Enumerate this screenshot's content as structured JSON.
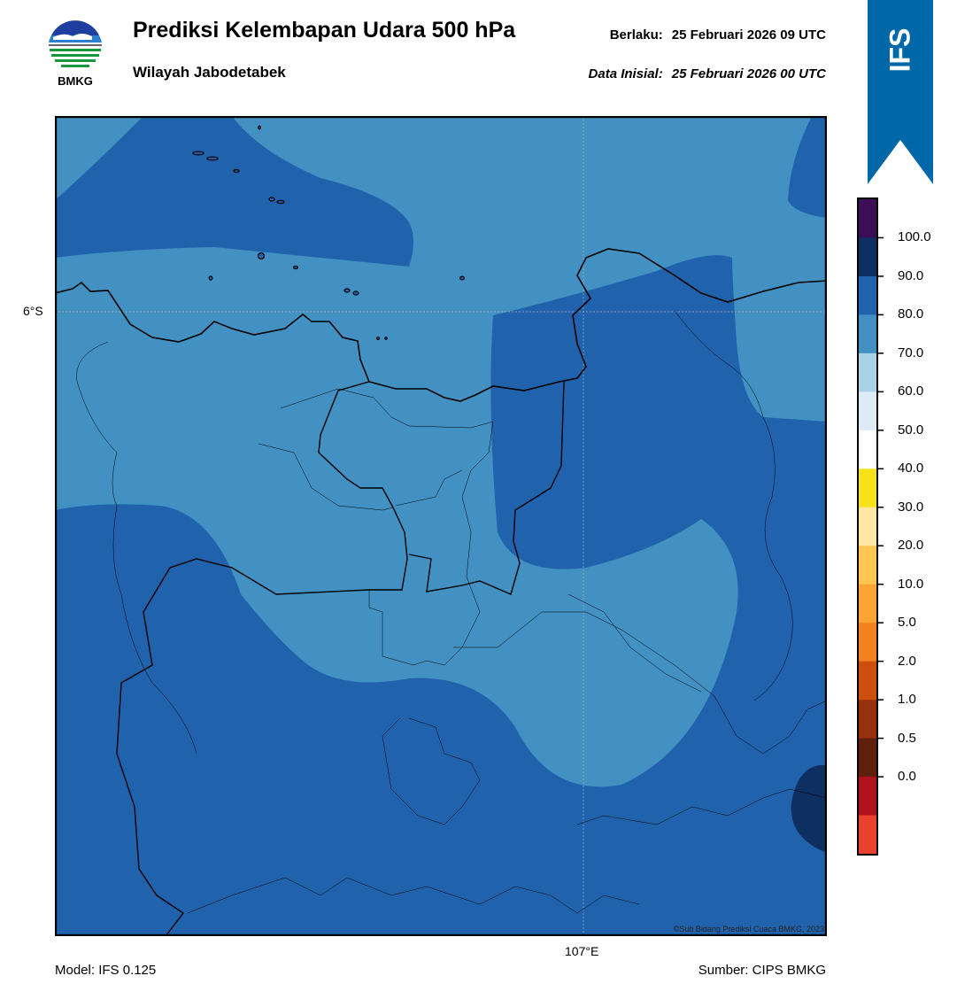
{
  "header": {
    "logo_text": "BMKG",
    "title": "Prediksi Kelembapan Udara 500 hPa",
    "region": "Wilayah Jabodetabek",
    "valid_label": "Berlaku:",
    "valid_value": "25 Februari 2026 09 UTC",
    "init_label": "Data Inisial:",
    "init_value": "25 Februari 2026 00 UTC"
  },
  "ribbon": {
    "text": "IFS",
    "color": "#0068a8"
  },
  "map": {
    "lat_label": "6°S",
    "lon_label": "107°E",
    "credit": "©Sub Bidang Prediksi Cuaca BMKG, 2023",
    "field_colors": {
      "band_70_80": "#4391c3",
      "band_80_90": "#2162ad",
      "band_90_100": "#0d2f61"
    }
  },
  "colorbar": {
    "ticks": [
      "100.0",
      "90.0",
      "80.0",
      "70.0",
      "60.0",
      "50.0",
      "40.0",
      "30.0",
      "20.0",
      "10.0",
      "5.0",
      "2.0",
      "1.0",
      "0.5",
      "0.0"
    ],
    "colors": [
      "#3b0e55",
      "#0d2f61",
      "#2162ad",
      "#4391c3",
      "#a8d3e6",
      "#deebf6",
      "#ffffff",
      "#f7e11b",
      "#ffe6a5",
      "#ffc653",
      "#fca535",
      "#f2821f",
      "#cc4f0d",
      "#96320b",
      "#5e200d",
      "#b0121d",
      "#e8412e"
    ]
  },
  "footer": {
    "model": "Model: IFS 0.125",
    "source": "Sumber: CIPS BMKG"
  }
}
